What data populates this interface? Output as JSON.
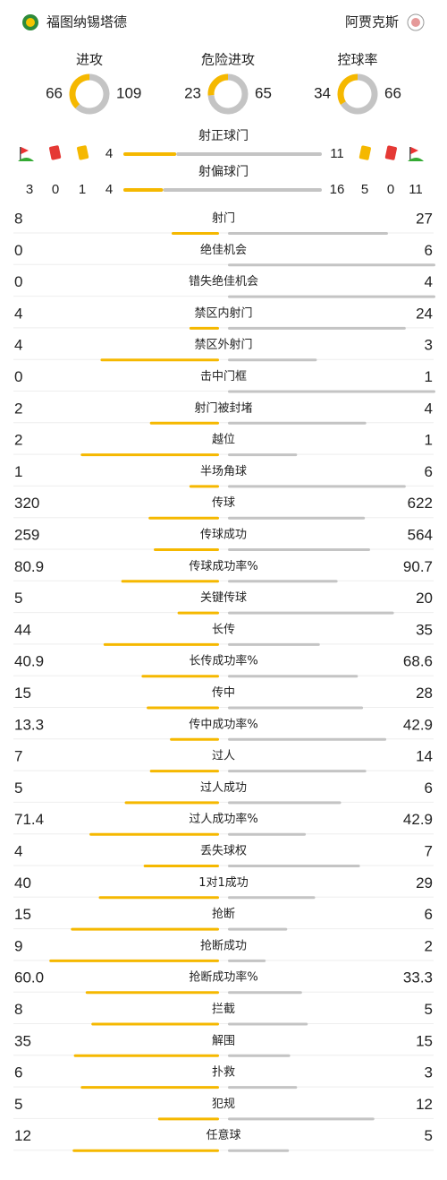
{
  "header": {
    "home_team": "福图纳锡塔德",
    "away_team": "阿贾克斯"
  },
  "summary": [
    {
      "label": "进攻",
      "home": 66,
      "away": 109
    },
    {
      "label": "危险进攻",
      "home": 23,
      "away": 65
    },
    {
      "label": "控球率",
      "home": 34,
      "away": 66
    }
  ],
  "shots": {
    "on_target": {
      "label": "射正球门",
      "home": 4,
      "away": 11
    },
    "off_target": {
      "label": "射偏球门",
      "home": 4,
      "away": 16
    },
    "home_corners": 3,
    "home_red_cards": 0,
    "home_yellow_cards": 1,
    "away_yellow_cards": 5,
    "away_red_cards": 0,
    "away_corners": 11
  },
  "stats": [
    {
      "label": "射门",
      "home": 8,
      "away": 27
    },
    {
      "label": "绝佳机会",
      "home": 0,
      "away": 6
    },
    {
      "label": "错失绝佳机会",
      "home": 0,
      "away": 4
    },
    {
      "label": "禁区内射门",
      "home": 4,
      "away": 24
    },
    {
      "label": "禁区外射门",
      "home": 4,
      "away": 3
    },
    {
      "label": "击中门框",
      "home": 0,
      "away": 1
    },
    {
      "label": "射门被封堵",
      "home": 2,
      "away": 4
    },
    {
      "label": "越位",
      "home": 2,
      "away": 1
    },
    {
      "label": "半场角球",
      "home": 1,
      "away": 6
    },
    {
      "label": "传球",
      "home": 320,
      "away": 622
    },
    {
      "label": "传球成功",
      "home": 259,
      "away": 564
    },
    {
      "label": "传球成功率%",
      "home": 80.9,
      "away": 90.7
    },
    {
      "label": "关键传球",
      "home": 5,
      "away": 20
    },
    {
      "label": "长传",
      "home": 44,
      "away": 35
    },
    {
      "label": "长传成功率%",
      "home": 40.9,
      "away": 68.6
    },
    {
      "label": "传中",
      "home": 15,
      "away": 28
    },
    {
      "label": "传中成功率%",
      "home": 13.3,
      "away": 42.9
    },
    {
      "label": "过人",
      "home": 7,
      "away": 14
    },
    {
      "label": "过人成功",
      "home": 5,
      "away": 6
    },
    {
      "label": "过人成功率%",
      "home": 71.4,
      "away": 42.9
    },
    {
      "label": "丢失球权",
      "home": 4,
      "away": 7
    },
    {
      "label": "1对1成功",
      "home": 40,
      "away": 29
    },
    {
      "label": "抢断",
      "home": 15,
      "away": 6
    },
    {
      "label": "抢断成功",
      "home": 9,
      "away": 2
    },
    {
      "label": "抢断成功率%",
      "home": {
        "value": 60,
        "label": "60.0"
      },
      "away": 33.3
    },
    {
      "label": "拦截",
      "home": 8,
      "away": 5
    },
    {
      "label": "解围",
      "home": 35,
      "away": 15
    },
    {
      "label": "扑救",
      "home": 6,
      "away": 3
    },
    {
      "label": "犯规",
      "home": 5,
      "away": 12
    },
    {
      "label": "任意球",
      "home": 12,
      "away": 5
    }
  ]
}
